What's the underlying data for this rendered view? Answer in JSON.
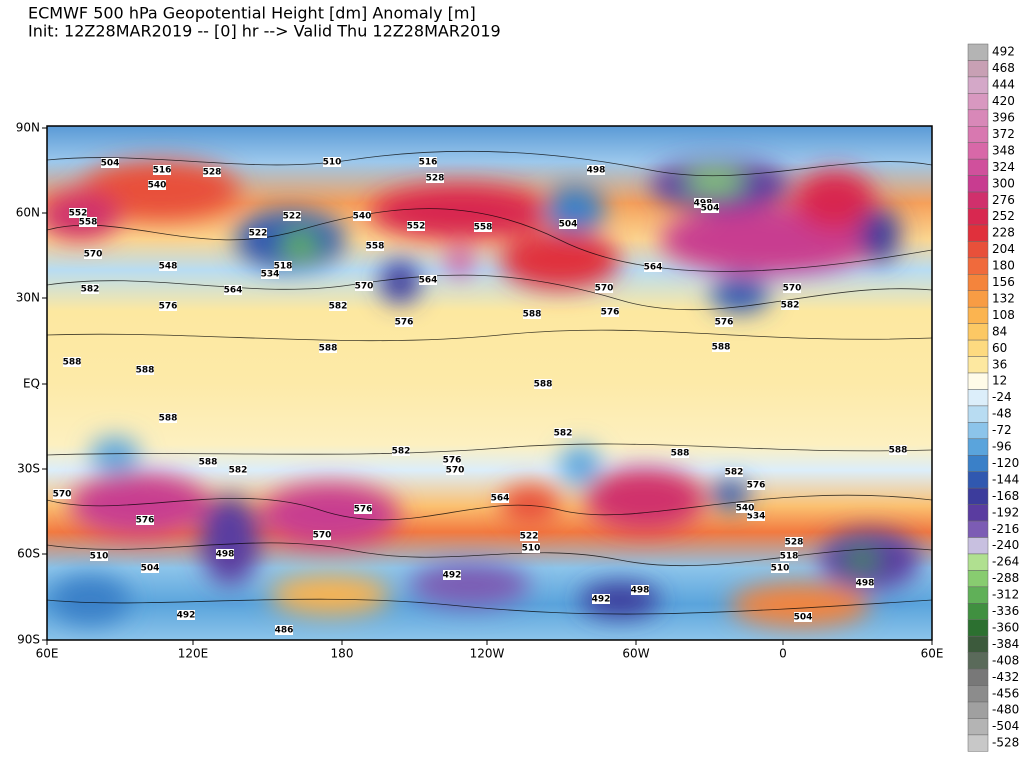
{
  "title": "ECMWF 500 hPa Geopotential Height [dm] Anomaly [m]",
  "subtitle": "Init: 12Z28MAR2019 -- [0] hr --> Valid Thu 12Z28MAR2019",
  "lat_labels": [
    "90N",
    "60N",
    "30N",
    "EQ",
    "30S",
    "60S",
    "90S"
  ],
  "lon_labels": [
    "60E",
    "120E",
    "180",
    "120W",
    "60W",
    "0",
    "60E"
  ],
  "colorbar": {
    "levels": [
      492,
      468,
      444,
      420,
      396,
      372,
      348,
      324,
      300,
      276,
      252,
      228,
      204,
      180,
      156,
      132,
      108,
      84,
      60,
      36,
      12,
      -24,
      -48,
      -72,
      -96,
      -120,
      -144,
      -168,
      -192,
      -216,
      -240,
      -264,
      -288,
      -312,
      -336,
      -360,
      -384,
      -408,
      -432,
      -456,
      -480,
      -504,
      -528
    ],
    "colors": [
      "#b4b4b4",
      "#c8a0b4",
      "#d4a8c8",
      "#d898c0",
      "#d888b8",
      "#d878b0",
      "#d868a8",
      "#d0509c",
      "#c83c90",
      "#d0306c",
      "#d82850",
      "#e0303c",
      "#e8503a",
      "#f06a3c",
      "#f4843c",
      "#f89c44",
      "#fbb450",
      "#fcc864",
      "#fdda80",
      "#fde8a0",
      "#fffbe8",
      "#dceefa",
      "#b8dcf2",
      "#8cc4ea",
      "#5aa4dc",
      "#3a80c8",
      "#3058b0",
      "#3c3c9c",
      "#5a3ca0",
      "#7c5cb4",
      "#c8c0e0",
      "#b0e090",
      "#88cc70",
      "#60b058",
      "#409040",
      "#2c7030",
      "#3c5a3c",
      "#5a6a5a",
      "#787878",
      "#8c8c8c",
      "#a0a0a0",
      "#b4b4b4",
      "#c8c8c8"
    ]
  },
  "contour_labels": [
    504,
    516,
    528,
    540,
    552,
    558,
    522,
    522,
    570,
    548,
    518,
    534,
    582,
    564,
    576,
    510,
    516,
    528,
    540,
    552,
    558,
    558,
    570,
    564,
    582,
    576,
    588,
    498,
    504,
    570,
    576,
    564,
    498,
    504,
    570,
    582,
    576,
    588,
    588,
    588,
    588,
    588,
    588,
    588,
    588,
    582,
    582,
    576,
    570,
    582,
    576,
    588,
    582,
    570,
    576,
    576,
    570,
    564,
    522,
    510,
    498,
    504,
    510,
    492,
    492,
    486,
    504,
    510,
    518,
    528,
    498,
    492,
    498,
    534,
    540
  ]
}
